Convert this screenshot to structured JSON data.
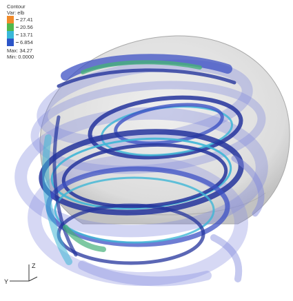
{
  "legend": {
    "title": "Contour",
    "variable": "Var: elb",
    "levels": [
      {
        "label": "27.41",
        "color": "#f08a2a"
      },
      {
        "label": "20.56",
        "color": "#4fb84c"
      },
      {
        "label": "13.71",
        "color": "#39b8d8"
      },
      {
        "label": "6.854",
        "color": "#2c55c8"
      }
    ],
    "max": "Max: 34.27",
    "min": "Min: 0.0000"
  },
  "axes": {
    "z": "Z",
    "y": "Y"
  },
  "colors": {
    "shell": "#c9c9c9",
    "band_dark": "#24349c",
    "band_mid": "#3d52c4",
    "band_light": "#7f87dc",
    "band_cyan": "#3fb6d6",
    "band_green": "#46b07a"
  }
}
